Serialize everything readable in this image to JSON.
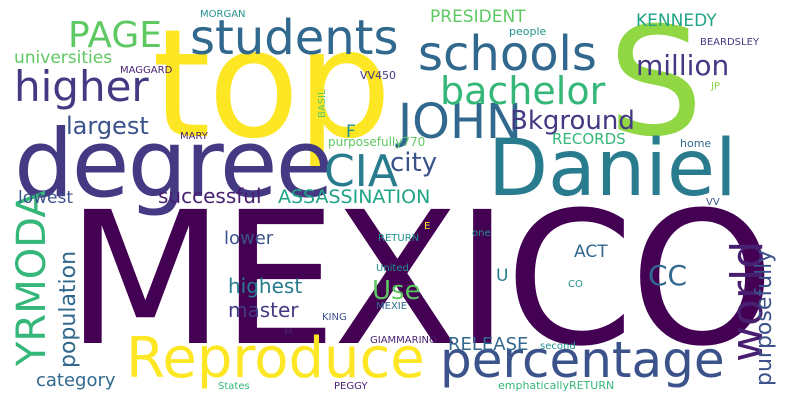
{
  "wordcloud": {
    "words": {
      "mexico": "MEXICO",
      "top": "top",
      "s": "S",
      "degree": "degree",
      "daniel": "Daniel",
      "reproduce": "Reproduce",
      "percentage": "percentage",
      "students": "students",
      "schools": "schools",
      "john": "JOHN",
      "higher": "higher",
      "page": "PAGE",
      "bachelor": "bachelor",
      "cia": "CIA",
      "yrmoda": "YRMODA",
      "world": "world",
      "million": "million",
      "bkground": "Bkground",
      "largest": "largest",
      "city": "city",
      "use": "Use",
      "cc": "CC",
      "population": "population",
      "purposefully": "purposefully",
      "assassination": "ASSASSINATION",
      "successful": "successful",
      "highest": "highest",
      "master": "master",
      "lower": "lower",
      "release": "RELEASE",
      "category": "category",
      "president": "PRESIDENT",
      "kennedy": "KENNEDY",
      "universities": "universities",
      "records": "RECORDS",
      "lowest": "lowest",
      "act": "ACT",
      "f": "F",
      "u": "U",
      "purposefully770": "purposefully770",
      "morgan": "MORGAN",
      "people": "people",
      "beardsley": "BEARDSLEY",
      "maggard": "MAGGARD",
      "vv450": "VV450",
      "basil": "BASIL",
      "jp": "JP",
      "mary": "MARY",
      "home": "home",
      "vv": "VV",
      "one": "one",
      "return": "RETURN",
      "e": "E",
      "united": "United",
      "co": "CO",
      "king": "KING",
      "mexie": "MEXIE",
      "m": "M",
      "giammarino": "GIAMMARINO",
      "second": "second",
      "states": "States",
      "peggy": "PEGGY",
      "emphatically_return": "emphaticallyRETURN"
    },
    "colors": {
      "dark_purple": "#440154",
      "purple": "#481f70",
      "indigo": "#443983",
      "blue": "#3b528b",
      "slate": "#31688e",
      "teal_blue": "#287c8e",
      "teal": "#21918c",
      "sea_green": "#20a486",
      "green": "#35b779",
      "light_green": "#5ec962",
      "lime": "#90d743",
      "yellow": "#fde725"
    }
  }
}
